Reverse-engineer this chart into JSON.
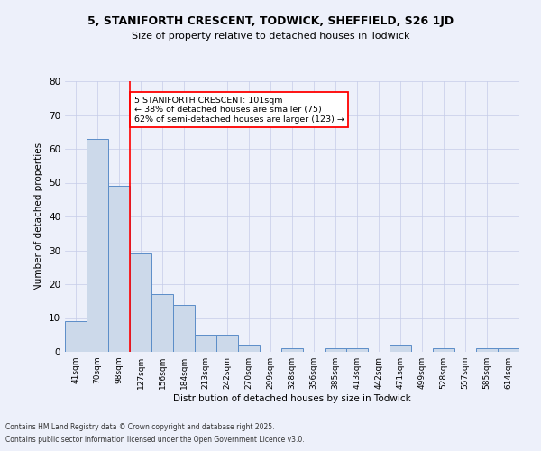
{
  "title1": "5, STANIFORTH CRESCENT, TODWICK, SHEFFIELD, S26 1JD",
  "title2": "Size of property relative to detached houses in Todwick",
  "xlabel": "Distribution of detached houses by size in Todwick",
  "ylabel": "Number of detached properties",
  "categories": [
    "41sqm",
    "70sqm",
    "98sqm",
    "127sqm",
    "156sqm",
    "184sqm",
    "213sqm",
    "242sqm",
    "270sqm",
    "299sqm",
    "328sqm",
    "356sqm",
    "385sqm",
    "413sqm",
    "442sqm",
    "471sqm",
    "499sqm",
    "528sqm",
    "557sqm",
    "585sqm",
    "614sqm"
  ],
  "values": [
    9,
    63,
    49,
    29,
    17,
    14,
    5,
    5,
    2,
    0,
    1,
    0,
    1,
    1,
    0,
    2,
    0,
    1,
    0,
    1,
    1
  ],
  "bar_color": "#ccd9ea",
  "bar_edge_color": "#5b8dc8",
  "red_line_x": 2.5,
  "annotation_text": "5 STANIFORTH CRESCENT: 101sqm\n← 38% of detached houses are smaller (75)\n62% of semi-detached houses are larger (123) →",
  "annotation_box_color": "white",
  "annotation_box_edge": "red",
  "ylim": [
    0,
    80
  ],
  "yticks": [
    0,
    10,
    20,
    30,
    40,
    50,
    60,
    70,
    80
  ],
  "footer1": "Contains HM Land Registry data © Crown copyright and database right 2025.",
  "footer2": "Contains public sector information licensed under the Open Government Licence v3.0.",
  "bg_color": "#edf0fa",
  "grid_color": "#c5cce8"
}
